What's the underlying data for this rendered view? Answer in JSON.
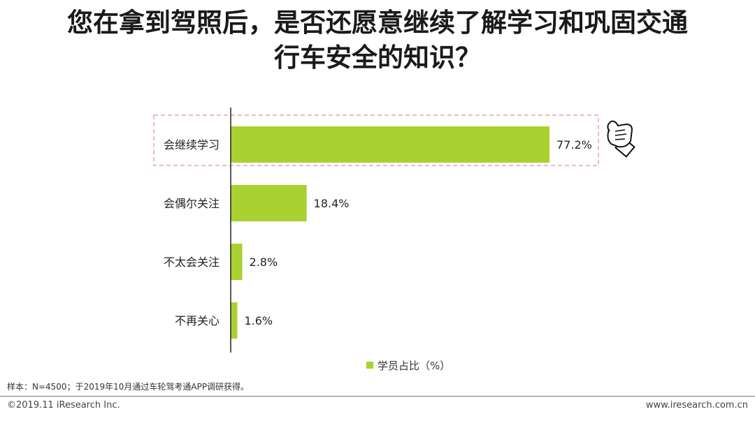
{
  "title": {
    "line1": "您在拿到驾照后，是否还愿意继续了解学习和巩固交通",
    "line2": "行车安全的知识？"
  },
  "chart_data": {
    "type": "bar",
    "orientation": "horizontal",
    "categories": [
      "会继续学习",
      "会偶尔关注",
      "不太会关注",
      "不再关心"
    ],
    "series": [
      {
        "name": "学员占比（%）",
        "values": [
          77.2,
          18.4,
          2.8,
          1.6
        ]
      }
    ],
    "value_labels": [
      "77.2%",
      "18.4%",
      "2.8%",
      "1.6%"
    ],
    "xlim": [
      0,
      100
    ],
    "highlight_category": "会继续学习",
    "bar_color": "#a9d12f",
    "highlight_border_color": "#e8a4b2",
    "axis_color": "#222222",
    "grid": false,
    "legend_position": "bottom"
  },
  "legend": {
    "label": "学员占比（%）"
  },
  "decoration": {
    "icon": "thumbs-up-icon"
  },
  "note": "样本：N=4500；于2019年10月通过车轮驾考通APP调研获得。",
  "footer": {
    "copyright": "©2019.11 iResearch Inc.",
    "website": "www.iresearch.com.cn"
  }
}
